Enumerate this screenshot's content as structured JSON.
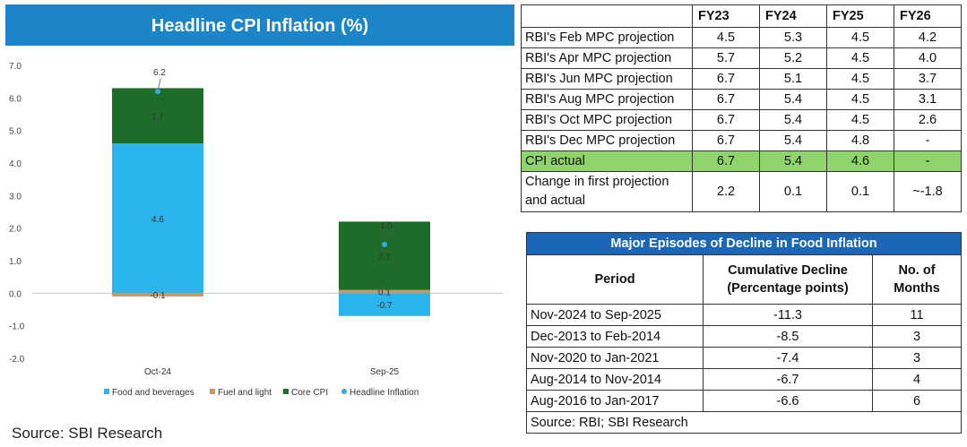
{
  "chart_title": "Headline CPI  Inflation (%)",
  "source_left": "Source: SBI Research",
  "chart_data": {
    "type": "bar",
    "stacked": true,
    "categories": [
      "Oct-24",
      "Sep-25"
    ],
    "series": [
      {
        "name": "Food and beverages",
        "values": [
          4.6,
          -0.7
        ],
        "color": "#29b5ec"
      },
      {
        "name": "Fuel and light",
        "values": [
          -0.1,
          0.1
        ],
        "color": "#c9976a"
      },
      {
        "name": "Core CPI",
        "values": [
          1.7,
          2.1
        ],
        "color": "#1f6b2a"
      }
    ],
    "line_series": {
      "name": "Headline Inflation",
      "values": [
        6.2,
        1.5
      ],
      "color": "#3aa7d8"
    },
    "ylim": [
      -2.0,
      7.0
    ],
    "yticks": [
      "7.0",
      "6.0",
      "5.0",
      "4.0",
      "3.0",
      "2.0",
      "1.0",
      "0.0",
      "-1.0",
      "-2.0"
    ],
    "title": "Headline CPI  Inflation (%)",
    "legend_position": "bottom"
  },
  "projection_table": {
    "headers": [
      "",
      "FY23",
      "FY24",
      "FY25",
      "FY26"
    ],
    "rows": [
      {
        "label": "RBI's Feb MPC projection",
        "values": [
          "4.5",
          "5.3",
          "4.5",
          "4.2"
        ]
      },
      {
        "label": "RBI's Apr MPC projection",
        "values": [
          "5.7",
          "5.2",
          "4.5",
          "4.0"
        ]
      },
      {
        "label": "RBI's Jun MPC projection",
        "values": [
          "6.7",
          "5.1",
          "4.5",
          "3.7"
        ]
      },
      {
        "label": "RBI's Aug MPC projection",
        "values": [
          "6.7",
          "5.4",
          "4.5",
          "3.1"
        ]
      },
      {
        "label": "RBI's Oct MPC projection",
        "values": [
          "6.7",
          "5.4",
          "4.5",
          "2.6"
        ]
      },
      {
        "label": "RBI's Dec MPC projection",
        "values": [
          "6.7",
          "5.4",
          "4.8",
          "-"
        ]
      }
    ],
    "actual_row": {
      "label": "CPI actual",
      "values": [
        "6.7",
        "5.4",
        "4.6",
        "-"
      ]
    },
    "change_row": {
      "label": "Change in first projection and actual",
      "values": [
        "2.2",
        "0.1",
        "0.1",
        "~-1.8"
      ]
    }
  },
  "food_table": {
    "title": "Major Episodes of Decline in Food Inflation",
    "headers": [
      "Period",
      "Cumulative Decline (Percentage points)",
      "No. of Months"
    ],
    "rows": [
      {
        "period": "Nov-2024 to Sep-2025",
        "decline": "-11.3",
        "months": "11"
      },
      {
        "period": "Dec-2013 to Feb-2014",
        "decline": "-8.5",
        "months": "3"
      },
      {
        "period": "Nov-2020 to Jan-2021",
        "decline": "-7.4",
        "months": "3"
      },
      {
        "period": "Aug-2014 to Nov-2014",
        "decline": "-6.7",
        "months": "4"
      },
      {
        "period": "Aug-2016 to Jan-2017",
        "decline": "-6.6",
        "months": "6"
      }
    ],
    "source": "Source: RBI; SBI Research"
  }
}
